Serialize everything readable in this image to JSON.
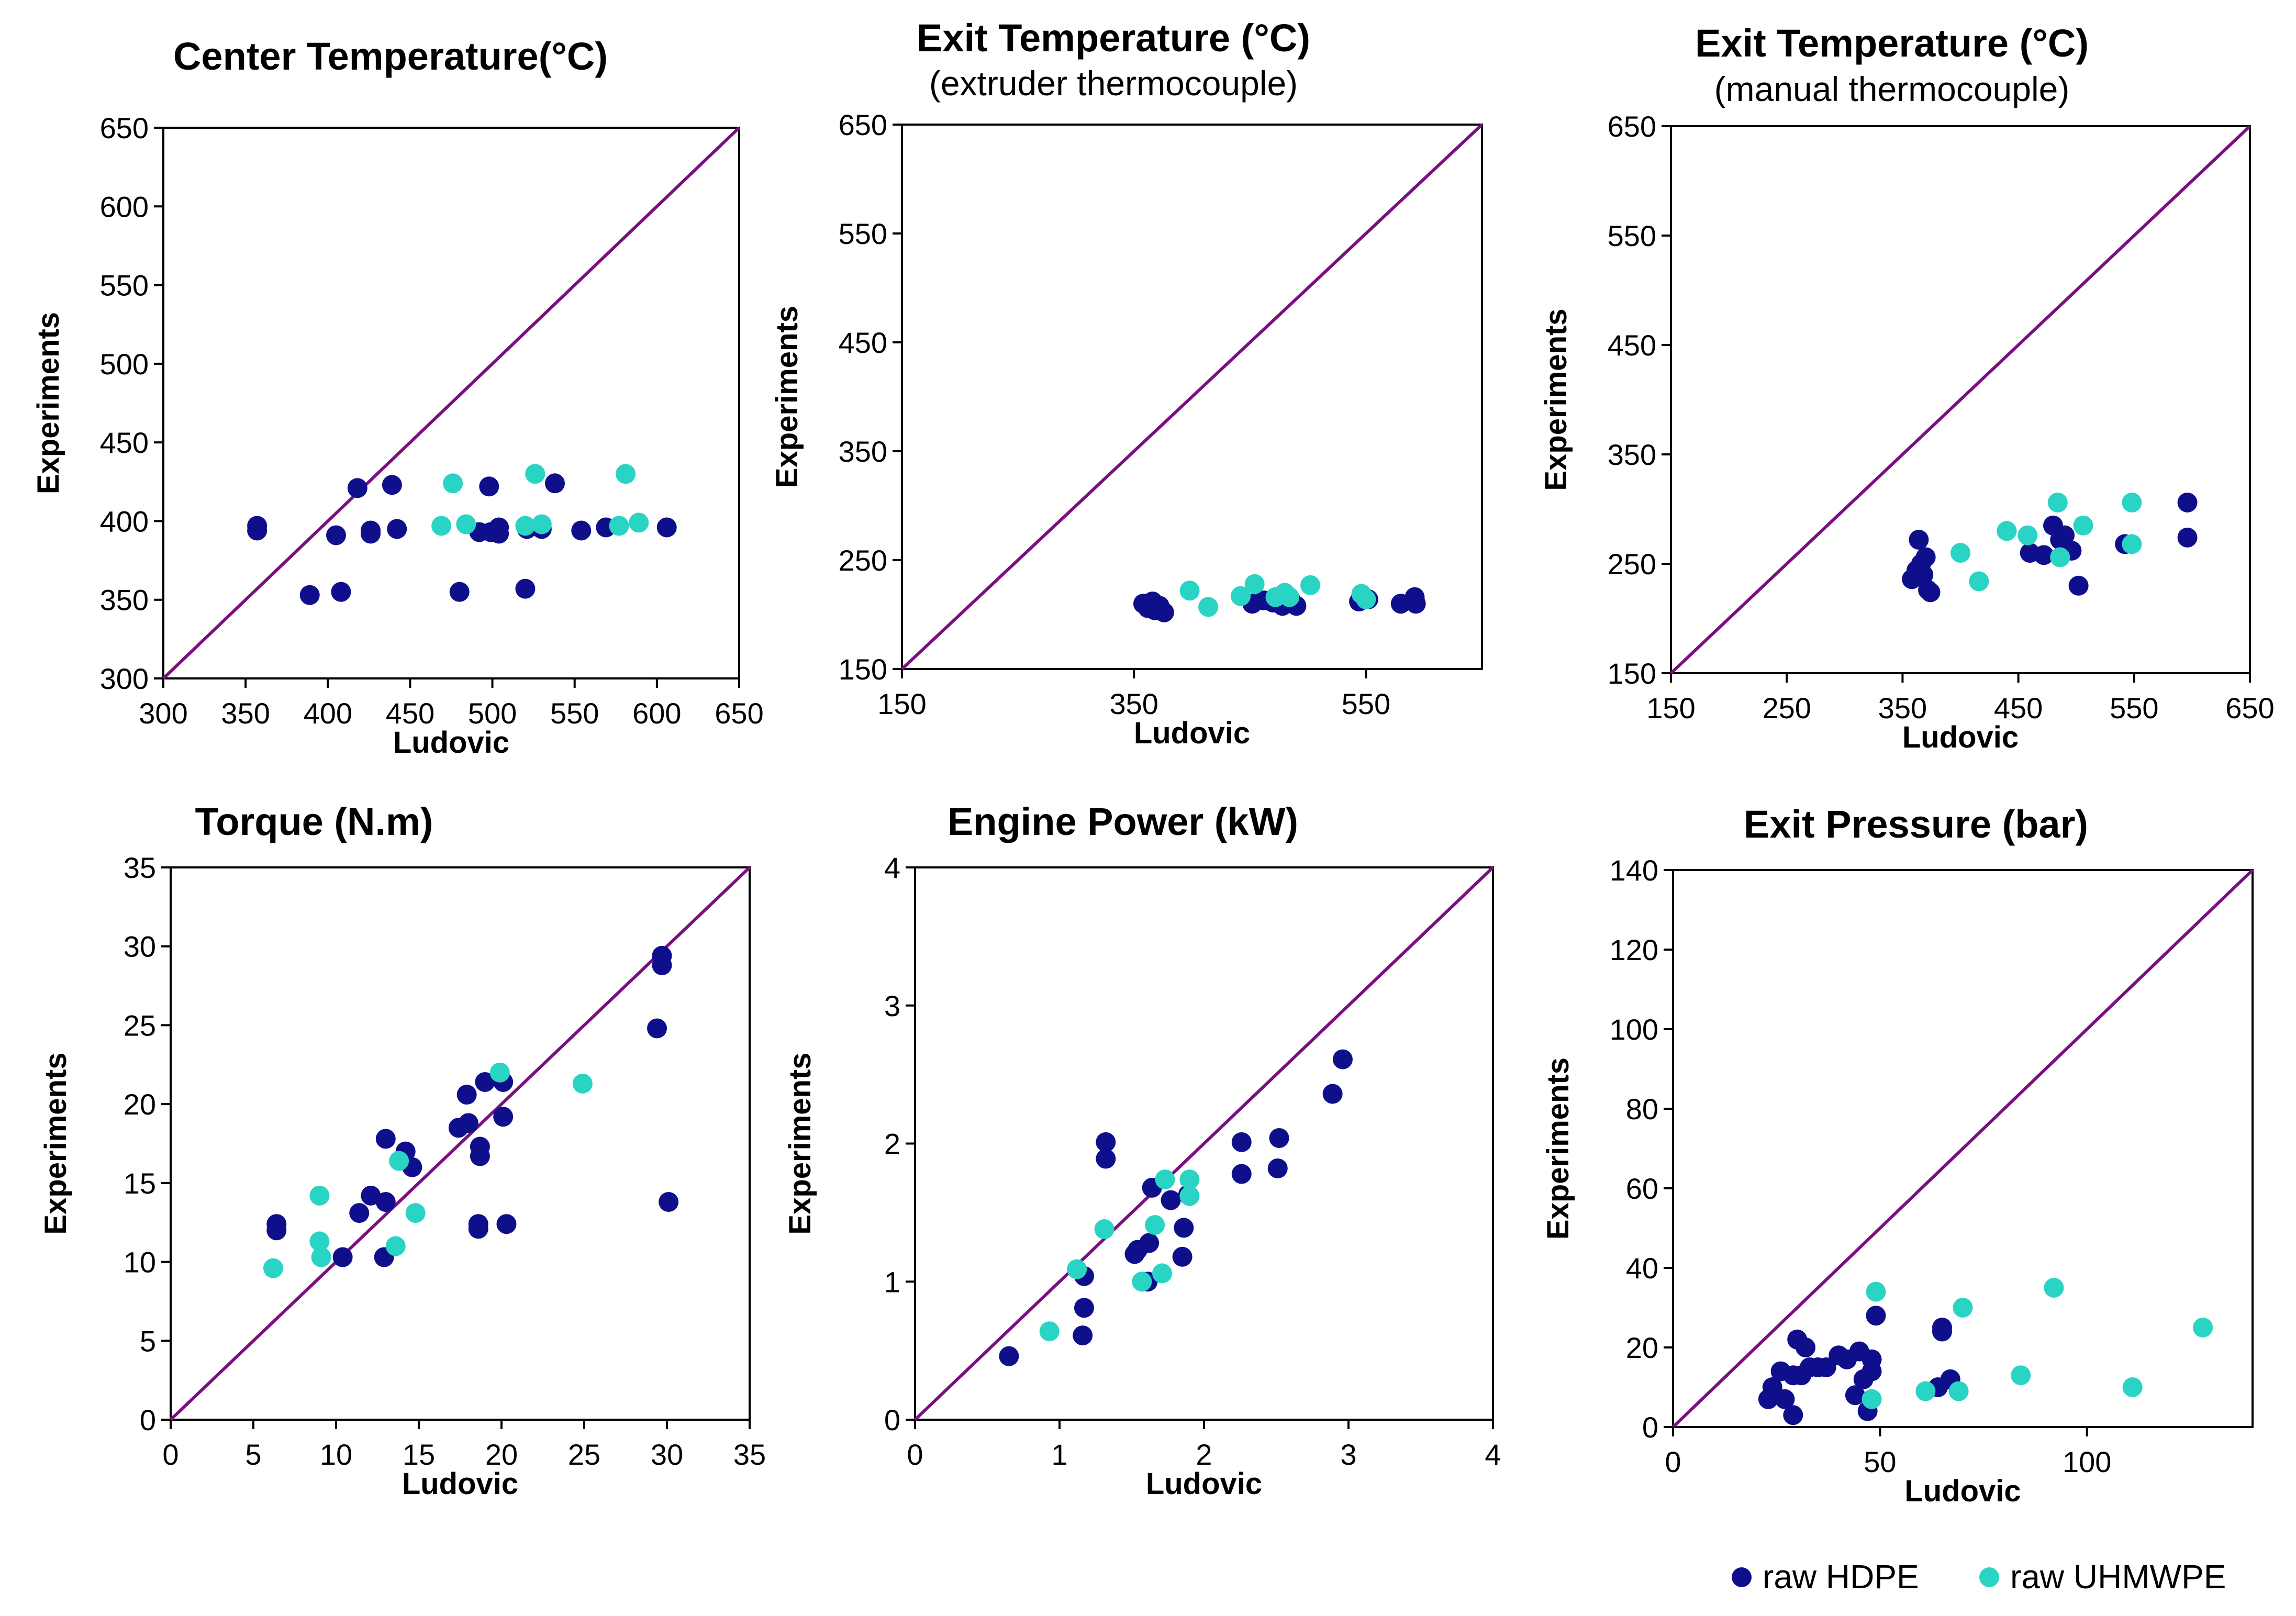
{
  "colors": {
    "hdpe": "#0f0f8c",
    "uhmwpe": "#2ad4c4",
    "diagonal": "#7a1080",
    "axis": "#000000"
  },
  "legend": [
    {
      "name": "raw HDPE",
      "color": "#0f0f8c"
    },
    {
      "name": "raw UHMWPE",
      "color": "#2ad4c4"
    }
  ],
  "chart_data": [
    {
      "type": "scatter",
      "title": "Center Temperature(°C)",
      "subtitle": "",
      "xlabel": "Ludovic",
      "ylabel": "Experiments",
      "xlim": [
        300,
        650
      ],
      "ylim": [
        300,
        650
      ],
      "xticks": [
        300,
        350,
        400,
        450,
        500,
        550,
        600,
        650
      ],
      "yticks": [
        300,
        350,
        400,
        450,
        500,
        550,
        600,
        650
      ],
      "series": [
        {
          "name": "raw HDPE",
          "points": [
            [
              357,
              397
            ],
            [
              357,
              394
            ],
            [
              389,
              353
            ],
            [
              405,
              391
            ],
            [
              408,
              355
            ],
            [
              418,
              421
            ],
            [
              426,
              394
            ],
            [
              426,
              392
            ],
            [
              439,
              423
            ],
            [
              442,
              395
            ],
            [
              480,
              355
            ],
            [
              492,
              393
            ],
            [
              498,
              422
            ],
            [
              499,
              393
            ],
            [
              504,
              396
            ],
            [
              504,
              392
            ],
            [
              520,
              357
            ],
            [
              521,
              395
            ],
            [
              530,
              395
            ],
            [
              538,
              424
            ],
            [
              554,
              394
            ],
            [
              569,
              396
            ],
            [
              606,
              396
            ]
          ]
        },
        {
          "name": "raw UHMWPE",
          "points": [
            [
              469,
              397
            ],
            [
              476,
              424
            ],
            [
              484,
              398
            ],
            [
              520,
              397
            ],
            [
              526,
              430
            ],
            [
              530,
              398
            ],
            [
              577,
              397
            ],
            [
              581,
              430
            ],
            [
              589,
              399
            ]
          ]
        }
      ]
    },
    {
      "type": "scatter",
      "title": "Exit Temperature (°C)",
      "subtitle": "(extruder thermocouple)",
      "xlabel": "Ludovic",
      "ylabel": "Experiments",
      "xlim": [
        150,
        650
      ],
      "ylim": [
        150,
        650
      ],
      "xticks": [
        150,
        350,
        550
      ],
      "yticks": [
        150,
        250,
        350,
        450,
        550,
        650
      ],
      "series": [
        {
          "name": "raw HDPE",
          "points": [
            [
              358,
              210
            ],
            [
              362,
              206
            ],
            [
              366,
              212
            ],
            [
              368,
              204
            ],
            [
              372,
              208
            ],
            [
              376,
              202
            ],
            [
              452,
              210
            ],
            [
              462,
              213
            ],
            [
              470,
              211
            ],
            [
              478,
              208
            ],
            [
              486,
              212
            ],
            [
              490,
              208
            ],
            [
              544,
              212
            ],
            [
              552,
              214
            ],
            [
              580,
              210
            ],
            [
              592,
              216
            ],
            [
              593,
              210
            ]
          ]
        },
        {
          "name": "raw UHMWPE",
          "points": [
            [
              398,
              222
            ],
            [
              414,
              207
            ],
            [
              442,
              217
            ],
            [
              454,
              228
            ],
            [
              472,
              216
            ],
            [
              480,
              220
            ],
            [
              484,
              216
            ],
            [
              502,
              227
            ],
            [
              546,
              219
            ],
            [
              550,
              214
            ]
          ]
        }
      ]
    },
    {
      "type": "scatter",
      "title": "Exit Temperature (°C)",
      "subtitle": "(manual thermocouple)",
      "xlabel": "Ludovic",
      "ylabel": "Experiments",
      "xlim": [
        150,
        650
      ],
      "ylim": [
        150,
        650
      ],
      "xticks": [
        150,
        250,
        350,
        450,
        550,
        650
      ],
      "yticks": [
        150,
        250,
        350,
        450,
        550,
        650
      ],
      "series": [
        {
          "name": "raw HDPE",
          "points": [
            [
              358,
              236
            ],
            [
              362,
              244
            ],
            [
              364,
              272
            ],
            [
              366,
              250
            ],
            [
              368,
              240
            ],
            [
              370,
              256
            ],
            [
              372,
              226
            ],
            [
              374,
              224
            ],
            [
              460,
              260
            ],
            [
              472,
              258
            ],
            [
              480,
              285
            ],
            [
              486,
              272
            ],
            [
              490,
              276
            ],
            [
              496,
              262
            ],
            [
              502,
              230
            ],
            [
              542,
              268
            ],
            [
              596,
              306
            ],
            [
              596,
              274
            ]
          ]
        },
        {
          "name": "raw UHMWPE",
          "points": [
            [
              400,
              260
            ],
            [
              416,
              234
            ],
            [
              440,
              280
            ],
            [
              458,
              276
            ],
            [
              484,
              306
            ],
            [
              486,
              256
            ],
            [
              506,
              285
            ],
            [
              548,
              306
            ],
            [
              548,
              268
            ]
          ]
        }
      ]
    },
    {
      "type": "scatter",
      "title": "Torque (N.m)",
      "subtitle": "",
      "xlabel": "Ludovic",
      "ylabel": "Experiments",
      "xlim": [
        0,
        35
      ],
      "ylim": [
        0,
        35
      ],
      "xticks": [
        0,
        5,
        10,
        15,
        20,
        25,
        30,
        35
      ],
      "yticks": [
        0,
        5,
        10,
        15,
        20,
        25,
        30,
        35
      ],
      "series": [
        {
          "name": "raw HDPE",
          "points": [
            [
              6.4,
              12.4
            ],
            [
              6.4,
              12.0
            ],
            [
              10.4,
              10.3
            ],
            [
              11.4,
              13.1
            ],
            [
              12.1,
              14.2
            ],
            [
              12.9,
              10.3
            ],
            [
              13.0,
              17.8
            ],
            [
              13.0,
              13.8
            ],
            [
              14.2,
              17.0
            ],
            [
              14.6,
              16.0
            ],
            [
              17.4,
              18.5
            ],
            [
              17.9,
              20.6
            ],
            [
              18.0,
              18.8
            ],
            [
              18.6,
              12.4
            ],
            [
              18.6,
              12.1
            ],
            [
              18.7,
              17.3
            ],
            [
              18.7,
              16.7
            ],
            [
              19.0,
              21.4
            ],
            [
              20.1,
              19.2
            ],
            [
              20.1,
              21.4
            ],
            [
              20.3,
              12.4
            ],
            [
              29.4,
              24.8
            ],
            [
              29.7,
              29.4
            ],
            [
              29.7,
              28.8
            ],
            [
              30.1,
              13.8
            ]
          ]
        },
        {
          "name": "raw UHMWPE",
          "points": [
            [
              6.2,
              9.6
            ],
            [
              9.0,
              14.2
            ],
            [
              9.0,
              11.3
            ],
            [
              9.1,
              10.3
            ],
            [
              13.6,
              11.0
            ],
            [
              13.8,
              16.4
            ],
            [
              14.8,
              13.1
            ],
            [
              19.9,
              22.0
            ],
            [
              24.9,
              21.3
            ]
          ]
        }
      ]
    },
    {
      "type": "scatter",
      "title": "Engine Power (kW)",
      "subtitle": "",
      "xlabel": "Ludovic",
      "ylabel": "Experiments",
      "xlim": [
        0,
        4
      ],
      "ylim": [
        0,
        4
      ],
      "xticks": [
        0,
        1,
        2,
        3,
        4
      ],
      "yticks": [
        0,
        1,
        2,
        3,
        4
      ],
      "series": [
        {
          "name": "raw HDPE",
          "points": [
            [
              0.65,
              0.46
            ],
            [
              1.16,
              0.61
            ],
            [
              1.17,
              0.81
            ],
            [
              1.17,
              1.04
            ],
            [
              1.32,
              2.01
            ],
            [
              1.32,
              1.89
            ],
            [
              1.52,
              1.2
            ],
            [
              1.54,
              1.23
            ],
            [
              1.61,
              1.0
            ],
            [
              1.62,
              1.28
            ],
            [
              1.64,
              1.68
            ],
            [
              1.77,
              1.59
            ],
            [
              1.85,
              1.18
            ],
            [
              1.86,
              1.39
            ],
            [
              1.89,
              1.63
            ],
            [
              2.26,
              2.01
            ],
            [
              2.26,
              1.78
            ],
            [
              2.52,
              2.04
            ],
            [
              2.51,
              1.82
            ],
            [
              2.89,
              2.36
            ],
            [
              2.96,
              2.61
            ]
          ]
        },
        {
          "name": "raw UHMWPE",
          "points": [
            [
              0.93,
              0.64
            ],
            [
              1.12,
              1.09
            ],
            [
              1.31,
              1.38
            ],
            [
              1.57,
              1.0
            ],
            [
              1.66,
              1.41
            ],
            [
              1.71,
              1.06
            ],
            [
              1.73,
              1.74
            ],
            [
              1.9,
              1.74
            ],
            [
              1.9,
              1.62
            ]
          ]
        }
      ]
    },
    {
      "type": "scatter",
      "title": "Exit Pressure (bar)",
      "subtitle": "",
      "xlabel": "Ludovic",
      "ylabel": "Experiments",
      "xlim": [
        0,
        140
      ],
      "ylim": [
        0,
        140
      ],
      "xticks": [
        0,
        50,
        100
      ],
      "yticks": [
        0,
        20,
        40,
        60,
        80,
        100,
        120,
        140
      ],
      "series": [
        {
          "name": "raw HDPE",
          "points": [
            [
              23,
              7
            ],
            [
              24,
              8
            ],
            [
              24,
              10
            ],
            [
              26,
              14
            ],
            [
              27,
              7
            ],
            [
              29,
              13
            ],
            [
              29,
              3
            ],
            [
              30,
              22
            ],
            [
              31,
              13
            ],
            [
              32,
              20
            ],
            [
              33,
              15
            ],
            [
              35,
              15
            ],
            [
              37,
              15
            ],
            [
              40,
              18
            ],
            [
              42,
              17
            ],
            [
              44,
              8
            ],
            [
              45,
              19
            ],
            [
              46,
              12
            ],
            [
              47,
              4
            ],
            [
              48,
              17
            ],
            [
              48,
              14
            ],
            [
              49,
              28
            ],
            [
              64,
              10
            ],
            [
              65,
              25
            ],
            [
              65,
              24
            ],
            [
              67,
              12
            ]
          ]
        },
        {
          "name": "raw UHMWPE",
          "points": [
            [
              48,
              7
            ],
            [
              49,
              34
            ],
            [
              61,
              9
            ],
            [
              69,
              9
            ],
            [
              70,
              30
            ],
            [
              84,
              13
            ],
            [
              92,
              35
            ],
            [
              111,
              10
            ],
            [
              128,
              25
            ]
          ]
        }
      ]
    }
  ]
}
